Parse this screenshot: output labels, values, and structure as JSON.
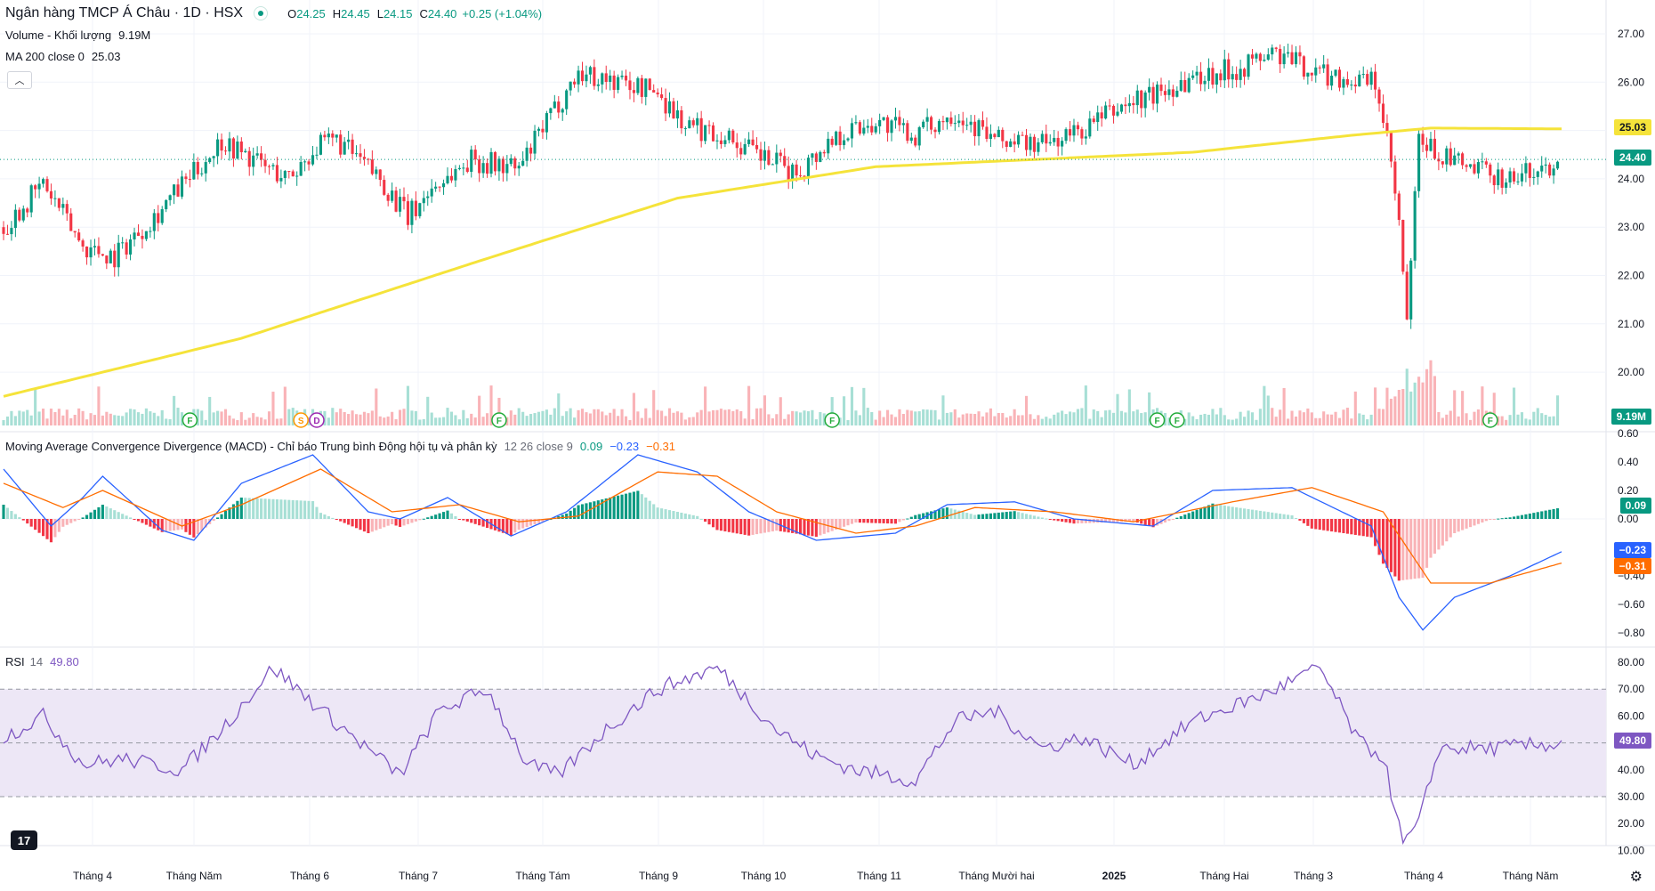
{
  "header": {
    "symbol_title": "Ngân hàng TMCP Á Châu · 1D · HSX",
    "ohlc": {
      "o_label": "O",
      "o": "24.25",
      "h_label": "H",
      "h": "24.45",
      "l_label": "L",
      "l": "24.15",
      "c_label": "C",
      "c": "24.40",
      "change": "+0.25 (+1.04%)"
    },
    "volume_label": "Volume - Khối lượng",
    "volume_value": "9.19M",
    "ma_label": "MA 200 close 0",
    "ma_value": "25.03",
    "collapse_icon": "chevron-up-icon"
  },
  "price_axis": {
    "ticks": [
      "27.00",
      "26.00",
      "25.00",
      "24.00",
      "23.00",
      "22.00",
      "21.00",
      "20.00"
    ],
    "tags": {
      "ma": "25.03",
      "last": "24.40",
      "volume": "9.19M"
    }
  },
  "macd": {
    "label": "Moving Average Convergence Divergence (MACD) - Chỉ báo Trung bình Động hội tụ và phân kỳ",
    "params": "12 26 close 9",
    "hist_value": "0.09",
    "macd_value": "−0.23",
    "signal_value": "−0.31",
    "ticks": [
      "0.60",
      "0.40",
      "0.20",
      "0.00",
      "−0.20",
      "−0.40",
      "−0.60",
      "−0.80"
    ],
    "tags": {
      "hist": "0.09",
      "macd": "−0.23",
      "signal": "−0.31"
    }
  },
  "rsi": {
    "label": "RSI",
    "length": "14",
    "value": "49.80",
    "ticks": [
      "80.00",
      "70.00",
      "60.00",
      "50.00",
      "40.00",
      "30.00",
      "20.00",
      "10.00"
    ],
    "tag": "49.80"
  },
  "time_axis": {
    "labels": [
      "Tháng 4",
      "Tháng Năm",
      "Tháng 6",
      "Tháng 7",
      "Tháng Tám",
      "Tháng 9",
      "Tháng 10",
      "Tháng 11",
      "Tháng Mười hai",
      "2025",
      "Tháng Hai",
      "Tháng 3",
      "Tháng 4",
      "Tháng Năm"
    ]
  },
  "event_markers": [
    "F",
    "S",
    "D",
    "F",
    "F",
    "F",
    "F",
    "F"
  ],
  "branding": {
    "logo_text": "17",
    "settings_icon": "gear-icon"
  },
  "colors": {
    "up": "#089981",
    "down": "#f23645",
    "ma": "#f5e33a",
    "macd": "#2962ff",
    "signal": "#ff6d00",
    "rsi": "#7e57c2",
    "rsi_band": "#ede7f6",
    "up_soft": "#a7dfd5",
    "down_soft": "#f9b3b7"
  },
  "chart_data": {
    "type": "candlestick",
    "price_range": [
      19.0,
      27.3
    ],
    "ma200_keypoints": [
      [
        0,
        19.5
      ],
      [
        60,
        20.7
      ],
      [
        120,
        22.3
      ],
      [
        170,
        23.6
      ],
      [
        220,
        24.25
      ],
      [
        300,
        24.55
      ],
      [
        340,
        24.9
      ],
      [
        360,
        25.05
      ],
      [
        400,
        25.03
      ]
    ],
    "close_keypoints": [
      [
        0,
        23.0
      ],
      [
        10,
        23.9
      ],
      [
        20,
        22.6
      ],
      [
        28,
        22.4
      ],
      [
        40,
        23.4
      ],
      [
        50,
        24.3
      ],
      [
        55,
        24.8
      ],
      [
        65,
        24.3
      ],
      [
        72,
        24.0
      ],
      [
        78,
        24.6
      ],
      [
        84,
        24.8
      ],
      [
        95,
        24.0
      ],
      [
        102,
        23.2
      ],
      [
        108,
        23.8
      ],
      [
        118,
        24.4
      ],
      [
        130,
        24.2
      ],
      [
        138,
        25.3
      ],
      [
        145,
        26.2
      ],
      [
        155,
        26.0
      ],
      [
        165,
        25.8
      ],
      [
        172,
        25.1
      ],
      [
        182,
        24.9
      ],
      [
        190,
        24.5
      ],
      [
        200,
        24.1
      ],
      [
        210,
        24.9
      ],
      [
        220,
        25.2
      ],
      [
        230,
        24.9
      ],
      [
        240,
        25.4
      ],
      [
        250,
        24.8
      ],
      [
        262,
        24.7
      ],
      [
        272,
        25.0
      ],
      [
        282,
        25.5
      ],
      [
        292,
        25.8
      ],
      [
        300,
        26.1
      ],
      [
        312,
        26.3
      ],
      [
        320,
        26.6
      ],
      [
        332,
        26.2
      ],
      [
        342,
        26.0
      ],
      [
        346,
        26.0
      ],
      [
        350,
        24.3
      ],
      [
        352,
        23.0
      ],
      [
        354,
        21.0
      ],
      [
        357,
        24.8
      ],
      [
        362,
        24.5
      ],
      [
        370,
        24.2
      ],
      [
        380,
        24.0
      ],
      [
        388,
        24.2
      ],
      [
        393,
        24.4
      ]
    ],
    "macd_keypoints": [
      [
        0,
        0.35
      ],
      [
        12,
        -0.05
      ],
      [
        20,
        0.15
      ],
      [
        25,
        0.3
      ],
      [
        40,
        -0.08
      ],
      [
        48,
        -0.15
      ],
      [
        60,
        0.25
      ],
      [
        78,
        0.45
      ],
      [
        92,
        0.05
      ],
      [
        100,
        0.0
      ],
      [
        112,
        0.15
      ],
      [
        128,
        -0.12
      ],
      [
        142,
        0.05
      ],
      [
        160,
        0.45
      ],
      [
        175,
        0.33
      ],
      [
        188,
        0.05
      ],
      [
        205,
        -0.15
      ],
      [
        225,
        -0.1
      ],
      [
        238,
        0.1
      ],
      [
        255,
        0.12
      ],
      [
        270,
        0.0
      ],
      [
        290,
        -0.05
      ],
      [
        305,
        0.2
      ],
      [
        325,
        0.22
      ],
      [
        345,
        -0.05
      ],
      [
        352,
        -0.55
      ],
      [
        358,
        -0.78
      ],
      [
        366,
        -0.55
      ],
      [
        380,
        -0.4
      ],
      [
        393,
        -0.23
      ]
    ],
    "signal_keypoints": [
      [
        0,
        0.25
      ],
      [
        15,
        0.08
      ],
      [
        25,
        0.2
      ],
      [
        45,
        -0.05
      ],
      [
        60,
        0.1
      ],
      [
        80,
        0.35
      ],
      [
        98,
        0.05
      ],
      [
        115,
        0.1
      ],
      [
        130,
        -0.02
      ],
      [
        145,
        0.02
      ],
      [
        165,
        0.33
      ],
      [
        180,
        0.3
      ],
      [
        195,
        0.05
      ],
      [
        215,
        -0.1
      ],
      [
        230,
        -0.05
      ],
      [
        245,
        0.08
      ],
      [
        265,
        0.05
      ],
      [
        285,
        -0.02
      ],
      [
        310,
        0.12
      ],
      [
        330,
        0.22
      ],
      [
        348,
        0.05
      ],
      [
        360,
        -0.45
      ],
      [
        375,
        -0.45
      ],
      [
        393,
        -0.31
      ]
    ],
    "rsi_keypoints": [
      [
        0,
        52
      ],
      [
        10,
        60
      ],
      [
        20,
        42
      ],
      [
        30,
        44
      ],
      [
        45,
        40
      ],
      [
        55,
        55
      ],
      [
        68,
        78
      ],
      [
        78,
        65
      ],
      [
        90,
        50
      ],
      [
        100,
        38
      ],
      [
        110,
        62
      ],
      [
        122,
        70
      ],
      [
        132,
        42
      ],
      [
        140,
        38
      ],
      [
        152,
        55
      ],
      [
        165,
        70
      ],
      [
        180,
        78
      ],
      [
        195,
        55
      ],
      [
        205,
        45
      ],
      [
        215,
        40
      ],
      [
        230,
        36
      ],
      [
        240,
        58
      ],
      [
        250,
        62
      ],
      [
        262,
        48
      ],
      [
        272,
        52
      ],
      [
        285,
        42
      ],
      [
        300,
        58
      ],
      [
        318,
        68
      ],
      [
        332,
        78
      ],
      [
        342,
        50
      ],
      [
        348,
        45
      ],
      [
        353,
        12
      ],
      [
        357,
        20
      ],
      [
        362,
        48
      ],
      [
        375,
        48
      ],
      [
        393,
        49.8
      ]
    ]
  }
}
